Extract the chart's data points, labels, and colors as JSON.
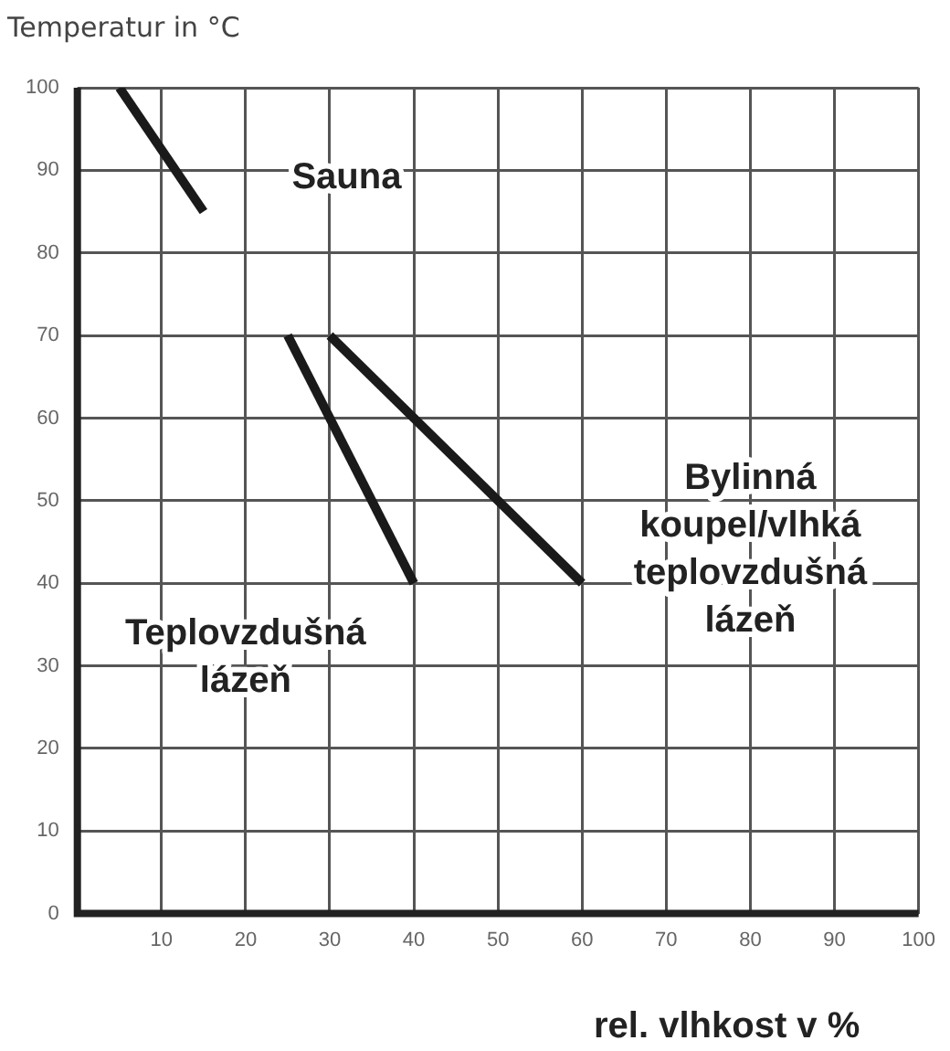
{
  "chart_data": {
    "type": "line",
    "ylabel": "Temperatur in °C",
    "xlabel": "rel. vlhkost v %",
    "xlim": [
      0,
      100
    ],
    "xticks": [
      {
        "value": 0,
        "label": null
      },
      10,
      20,
      30,
      40,
      50,
      60,
      70,
      80,
      90,
      100
    ],
    "ylim": [
      0,
      100
    ],
    "yticks": [
      0,
      10,
      20,
      30,
      40,
      50,
      60,
      70,
      80,
      90,
      100
    ],
    "grid": true,
    "legend": false,
    "marker": "none",
    "line_style": "solid",
    "series": [
      {
        "name": "Sauna",
        "color": "#1a1a1a",
        "x": [
          5,
          15
        ],
        "values": [
          100,
          85
        ]
      },
      {
        "name": "Teplovzdušná lázeň",
        "color": "#1a1a1a",
        "x": [
          25,
          40
        ],
        "values": [
          70,
          40
        ]
      },
      {
        "name": "Bylinná koupel/vlhká teplovzdušná lázeň",
        "color": "#1a1a1a",
        "x": [
          30,
          60
        ],
        "values": [
          70,
          40
        ]
      }
    ]
  }
}
